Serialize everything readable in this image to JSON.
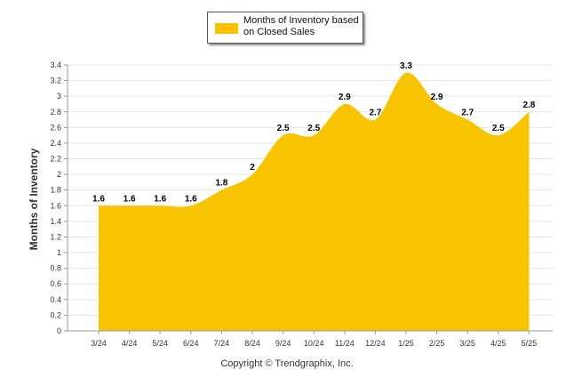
{
  "legend": {
    "label": "Months of Inventory based on Closed Sales"
  },
  "footer": {
    "copyright": "Copyright © Trendgraphix, Inc."
  },
  "colors": {
    "fill": "#f8c300",
    "grid": "#e6e6e6",
    "axis": "#999999"
  },
  "chart_data": {
    "type": "area",
    "categories": [
      "3/24",
      "4/24",
      "5/24",
      "6/24",
      "7/24",
      "8/24",
      "9/24",
      "10/24",
      "11/24",
      "12/24",
      "1/25",
      "2/25",
      "3/25",
      "4/25",
      "5/25"
    ],
    "series": [
      {
        "name": "Months of Inventory based on Closed Sales",
        "values": [
          1.6,
          1.6,
          1.6,
          1.6,
          1.8,
          2,
          2.5,
          2.5,
          2.9,
          2.7,
          3.3,
          2.9,
          2.7,
          2.5,
          2.8
        ]
      }
    ],
    "data_labels": [
      "1.6",
      "1.6",
      "1.6",
      "1.6",
      "1.8",
      "2",
      "2.5",
      "2.5",
      "2.9",
      "2.7",
      "3.3",
      "2.9",
      "2.7",
      "2.5",
      "2.8"
    ],
    "ylabel": "Months of Inventory",
    "ylim": [
      0,
      3.4
    ],
    "yticks": [
      0,
      0.2,
      0.4,
      0.6,
      0.8,
      1,
      1.2,
      1.4,
      1.6,
      1.8,
      2,
      2.2,
      2.4,
      2.6,
      2.8,
      3,
      3.2,
      3.4
    ],
    "ytick_labels": [
      "0",
      "0.2",
      "0.4",
      "0.6",
      "0.8",
      "1",
      "1.2",
      "1.4",
      "1.6",
      "1.8",
      "2",
      "2.2",
      "2.4",
      "2.6",
      "2.8",
      "3",
      "3.2",
      "3.4"
    ],
    "grid": true,
    "legend_position": "top-center"
  }
}
